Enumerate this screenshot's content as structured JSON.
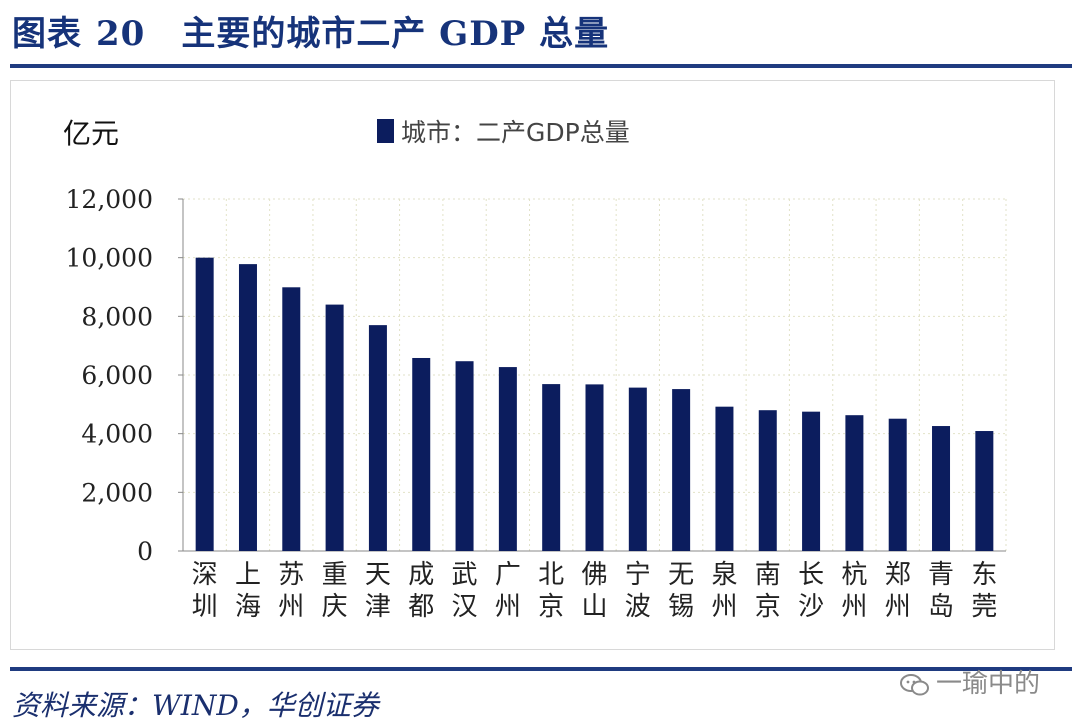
{
  "header": {
    "title_prefix": "图表",
    "title_number": "20",
    "title_text": "主要的城市二产 GDP 总量"
  },
  "footer": {
    "source": "资料来源：WIND，华创证券",
    "watermark": "一瑜中的"
  },
  "colors": {
    "bar": "#0c1d5e",
    "title": "#16337a",
    "rule": "#1f3b80"
  },
  "chart_data": {
    "type": "bar",
    "title": "",
    "legend": "城市：二产GDP总量",
    "legend_position": "top-center",
    "ylabel": "亿元",
    "xlabel": "",
    "ylim": [
      0,
      12000
    ],
    "yticks": [
      0,
      2000,
      4000,
      6000,
      8000,
      10000,
      12000
    ],
    "ytick_labels": [
      "0",
      "2,000",
      "4,000",
      "6,000",
      "8,000",
      "10,000",
      "12,000"
    ],
    "grid": true,
    "categories": [
      "深圳",
      "上海",
      "苏州",
      "重庆",
      "天津",
      "成都",
      "武汉",
      "广州",
      "北京",
      "佛山",
      "宁波",
      "无锡",
      "泉州",
      "南京",
      "长沙",
      "杭州",
      "郑州",
      "青岛",
      "东莞"
    ],
    "series": [
      {
        "name": "城市：二产GDP总量",
        "values": [
          10000,
          9780,
          8990,
          8400,
          7700,
          6580,
          6470,
          6270,
          5690,
          5680,
          5570,
          5520,
          4920,
          4800,
          4750,
          4630,
          4510,
          4260,
          4090
        ]
      }
    ]
  }
}
